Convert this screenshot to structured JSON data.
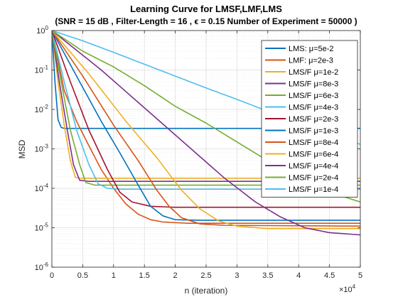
{
  "chart_data": {
    "type": "line",
    "title": "Learning Curve for LMSF,LMF,LMS",
    "subtitle": "(SNR = 15 dB , Filter-Length = 16 , ϵ = 0.15  Number of Experiment = 50000 )",
    "xlabel": "n (iteration)",
    "ylabel": "MSD",
    "x_multiplier_label": "×10",
    "x_multiplier_exp": "4",
    "xlim": [
      0,
      50000
    ],
    "ylim": [
      1e-06,
      1
    ],
    "y_scale": "log",
    "grid": true,
    "minor_grid": true,
    "legend_position": "top-right",
    "x_ticks": [
      0,
      5000,
      10000,
      15000,
      20000,
      25000,
      30000,
      35000,
      40000,
      45000,
      50000
    ],
    "x_tick_labels": [
      "0",
      "0.5",
      "1",
      "1.5",
      "2",
      "2.5",
      "3",
      "3.5",
      "4",
      "4.5",
      "5"
    ],
    "y_ticks": [
      1e-06,
      1e-05,
      0.0001,
      0.001,
      0.01,
      0.1,
      1
    ],
    "y_tick_labels": [
      {
        "base": "10",
        "exp": "-6"
      },
      {
        "base": "10",
        "exp": "-5"
      },
      {
        "base": "10",
        "exp": "-4"
      },
      {
        "base": "10",
        "exp": "-3"
      },
      {
        "base": "10",
        "exp": "-2"
      },
      {
        "base": "10",
        "exp": "-1"
      },
      {
        "base": "10",
        "exp": "0"
      }
    ],
    "series": [
      {
        "name": "LMS: μ=5e-2",
        "color": "#0072BD",
        "width": 1.6,
        "points": [
          [
            0,
            1.0
          ],
          [
            500,
            0.05
          ],
          [
            1000,
            0.0055
          ],
          [
            1500,
            0.0035
          ],
          [
            2000,
            0.0033
          ],
          [
            5000,
            0.0033
          ],
          [
            50000,
            0.0033
          ]
        ]
      },
      {
        "name": "LMF: μ=2e-3",
        "color": "#D95319",
        "width": 1.6,
        "points": [
          [
            0,
            1.0
          ],
          [
            2000,
            0.03
          ],
          [
            4000,
            0.005
          ],
          [
            6000,
            0.0012
          ],
          [
            8000,
            0.0003
          ],
          [
            10000,
            0.0001
          ],
          [
            12000,
            4e-05
          ],
          [
            14000,
            2.2e-05
          ],
          [
            16000,
            1.6e-05
          ],
          [
            18000,
            1.4e-05
          ],
          [
            22000,
            1.3e-05
          ],
          [
            50000,
            1.3e-05
          ]
        ]
      },
      {
        "name": "LMS/F μ=1e-2",
        "color": "#EDB120",
        "width": 1.6,
        "points": [
          [
            0,
            1.0
          ],
          [
            1000,
            0.05
          ],
          [
            2000,
            0.004
          ],
          [
            3000,
            0.0005
          ],
          [
            3800,
            0.00019
          ],
          [
            4500,
            0.00018
          ],
          [
            50000,
            0.00018
          ]
        ]
      },
      {
        "name": "LMS/F μ=8e-3",
        "color": "#7E2F8E",
        "width": 1.6,
        "points": [
          [
            0,
            1.0
          ],
          [
            1200,
            0.05
          ],
          [
            2500,
            0.003
          ],
          [
            3500,
            0.0004
          ],
          [
            4500,
            0.00016
          ],
          [
            6000,
            0.00015
          ],
          [
            50000,
            0.00015
          ]
        ]
      },
      {
        "name": "LMS/F μ=6e-3",
        "color": "#77AC30",
        "width": 1.6,
        "points": [
          [
            0,
            1.0
          ],
          [
            1500,
            0.05
          ],
          [
            3000,
            0.003
          ],
          [
            4500,
            0.0004
          ],
          [
            5500,
            0.00014
          ],
          [
            7000,
            0.00012
          ],
          [
            50000,
            0.00012
          ]
        ]
      },
      {
        "name": "LMS/F μ=4e-3",
        "color": "#4DBEEE",
        "width": 1.6,
        "points": [
          [
            0,
            1.0
          ],
          [
            2000,
            0.05
          ],
          [
            4000,
            0.003
          ],
          [
            6000,
            0.0004
          ],
          [
            7500,
            0.00013
          ],
          [
            9000,
            0.0001
          ],
          [
            11000,
            9.5e-05
          ],
          [
            50000,
            9.5e-05
          ]
        ]
      },
      {
        "name": "LMS/F μ=2e-3",
        "color": "#A2142F",
        "width": 1.6,
        "points": [
          [
            0,
            1.0
          ],
          [
            3000,
            0.05
          ],
          [
            6000,
            0.003
          ],
          [
            9000,
            0.0003
          ],
          [
            11000,
            8e-05
          ],
          [
            13000,
            4.5e-05
          ],
          [
            16000,
            3.5e-05
          ],
          [
            20000,
            3.3e-05
          ],
          [
            50000,
            3.3e-05
          ]
        ]
      },
      {
        "name": "LMS/F μ=1e-3",
        "color": "#0072BD",
        "width": 1.6,
        "points": [
          [
            0,
            1.0
          ],
          [
            4000,
            0.07
          ],
          [
            8000,
            0.005
          ],
          [
            11000,
            0.0008
          ],
          [
            14000,
            0.00012
          ],
          [
            16000,
            3.5e-05
          ],
          [
            18000,
            2e-05
          ],
          [
            20000,
            1.6e-05
          ],
          [
            24000,
            1.55e-05
          ],
          [
            50000,
            1.55e-05
          ]
        ]
      },
      {
        "name": "LMS/F μ=8e-4",
        "color": "#D95319",
        "width": 1.6,
        "points": [
          [
            0,
            1.0
          ],
          [
            5000,
            0.07
          ],
          [
            10000,
            0.004
          ],
          [
            14000,
            0.0005
          ],
          [
            17000,
            9e-05
          ],
          [
            19000,
            3.5e-05
          ],
          [
            21000,
            1.8e-05
          ],
          [
            24000,
            1.25e-05
          ],
          [
            28000,
            1.15e-05
          ],
          [
            50000,
            1.1e-05
          ]
        ]
      },
      {
        "name": "LMS/F μ=6e-4",
        "color": "#EDB120",
        "width": 1.6,
        "points": [
          [
            0,
            1.0
          ],
          [
            6000,
            0.08
          ],
          [
            12000,
            0.005
          ],
          [
            17000,
            0.0006
          ],
          [
            21000,
            9e-05
          ],
          [
            24000,
            3e-05
          ],
          [
            27000,
            1.5e-05
          ],
          [
            30000,
            1.1e-05
          ],
          [
            35000,
            9.5e-06
          ],
          [
            50000,
            9.5e-06
          ]
        ]
      },
      {
        "name": "LMS/F μ=4e-4",
        "color": "#7E2F8E",
        "width": 1.6,
        "points": [
          [
            0,
            1.0
          ],
          [
            8000,
            0.1
          ],
          [
            16000,
            0.008
          ],
          [
            22000,
            0.0012
          ],
          [
            28000,
            0.00018
          ],
          [
            33000,
            4.5e-05
          ],
          [
            37000,
            1.9e-05
          ],
          [
            41000,
            1e-05
          ],
          [
            45000,
            7.5e-06
          ],
          [
            50000,
            6.6e-06
          ]
        ]
      },
      {
        "name": "LMS/F μ=2e-4",
        "color": "#77AC30",
        "width": 1.6,
        "points": [
          [
            0,
            1.0
          ],
          [
            5000,
            0.3
          ],
          [
            10000,
            0.12
          ],
          [
            15000,
            0.04
          ],
          [
            20000,
            0.012
          ],
          [
            25000,
            0.0045
          ],
          [
            30000,
            0.0015
          ],
          [
            35000,
            0.0005
          ],
          [
            40000,
            0.00019
          ],
          [
            45000,
            8e-05
          ],
          [
            50000,
            4.5e-05
          ]
        ]
      },
      {
        "name": "LMS/F μ=1e-4",
        "color": "#4DBEEE",
        "width": 1.6,
        "points": [
          [
            0,
            1.0
          ],
          [
            5000,
            0.55
          ],
          [
            10000,
            0.28
          ],
          [
            15000,
            0.14
          ],
          [
            20000,
            0.07
          ],
          [
            25000,
            0.035
          ],
          [
            30000,
            0.018
          ],
          [
            35000,
            0.009
          ],
          [
            40000,
            0.0047
          ],
          [
            45000,
            0.0025
          ],
          [
            50000,
            0.0013
          ]
        ]
      }
    ]
  }
}
